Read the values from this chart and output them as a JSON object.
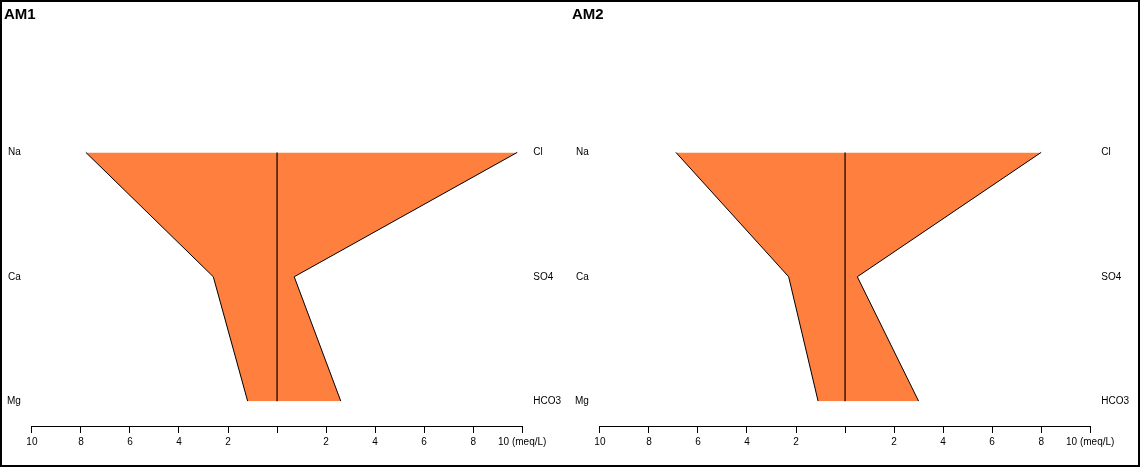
{
  "chart_data": [
    {
      "type": "area",
      "orientation": "horizontal",
      "title": "AM1",
      "categories": [
        "Na",
        "Ca",
        "Mg"
      ],
      "y2_categories": [
        "Cl",
        "SO4",
        "HCO3"
      ],
      "series": [
        {
          "color": "#ff7f3f",
          "values": [
            -7.8,
            -2.6,
            -1.2
          ]
        },
        {
          "color": "#ff7f3f",
          "values": [
            9.8,
            0.7,
            2.6
          ]
        }
      ],
      "xlim": [
        -10,
        10
      ],
      "xticks": [
        {
          "value": -10,
          "label": "10"
        },
        {
          "value": -8,
          "label": "8"
        },
        {
          "value": -6,
          "label": "6"
        },
        {
          "value": -4,
          "label": "4"
        },
        {
          "value": -2,
          "label": "2"
        },
        {
          "value": 0,
          "label": null
        },
        2,
        4,
        6,
        8,
        {
          "value": 10,
          "label": "10 (meq/L)"
        }
      ],
      "ref_lines": [
        {
          "axis": "x",
          "value": 0,
          "color": "#000000"
        }
      ]
    },
    {
      "type": "area",
      "orientation": "horizontal",
      "title": "AM2",
      "categories": [
        "Na",
        "Ca",
        "Mg"
      ],
      "y2_categories": [
        "Cl",
        "SO4",
        "HCO3"
      ],
      "series": [
        {
          "color": "#ff7f3f",
          "values": [
            -6.9,
            -2.3,
            -1.1
          ]
        },
        {
          "color": "#ff7f3f",
          "values": [
            8.0,
            0.5,
            3.0
          ]
        }
      ],
      "xlim": [
        -10,
        10
      ],
      "xticks": [
        {
          "value": -10,
          "label": "10"
        },
        {
          "value": -8,
          "label": "8"
        },
        {
          "value": -6,
          "label": "6"
        },
        {
          "value": -4,
          "label": "4"
        },
        {
          "value": -2,
          "label": "2"
        },
        {
          "value": 0,
          "label": null
        },
        2,
        4,
        6,
        8,
        {
          "value": 10,
          "label": "10 (meq/L)"
        }
      ],
      "ref_lines": [
        {
          "axis": "x",
          "value": 0,
          "color": "#000000"
        }
      ]
    }
  ]
}
